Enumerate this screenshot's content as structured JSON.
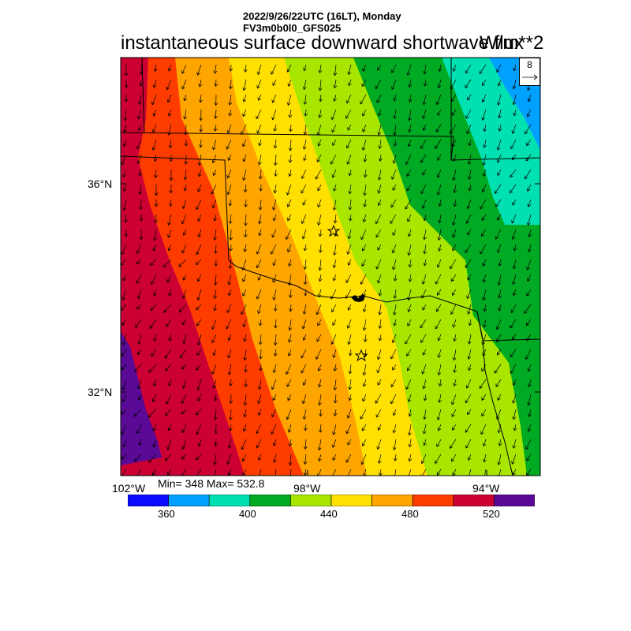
{
  "header": {
    "line1": "2022/9/26/22UTC (16LT), Monday",
    "line2": "FV3m0b0l0_GFS025"
  },
  "title": "instantaneous surface downward shortwave flux",
  "units": "W/m**2",
  "stats": "Min= 348 Max= 532.8",
  "reference_vector": {
    "label": "8"
  },
  "latitude_labels": [
    "36°N",
    "32°N"
  ],
  "longitude_labels": [
    "102°W",
    "98°W",
    "94°W"
  ],
  "colorbar": {
    "colors": [
      "#0a0aff",
      "#00a0ff",
      "#00e0b0",
      "#00aa22",
      "#a8e600",
      "#ffe000",
      "#ffa500",
      "#ff3c00",
      "#cc0033",
      "#5a0a96"
    ],
    "labels": [
      "360",
      "400",
      "440",
      "480",
      "520"
    ]
  },
  "map_features": {
    "stars": [
      "station-star-1",
      "station-star-2"
    ],
    "wind_arrows": "field of wind vectors (mostly pointing south/southwest)",
    "borders": "state boundaries and Red River"
  }
}
